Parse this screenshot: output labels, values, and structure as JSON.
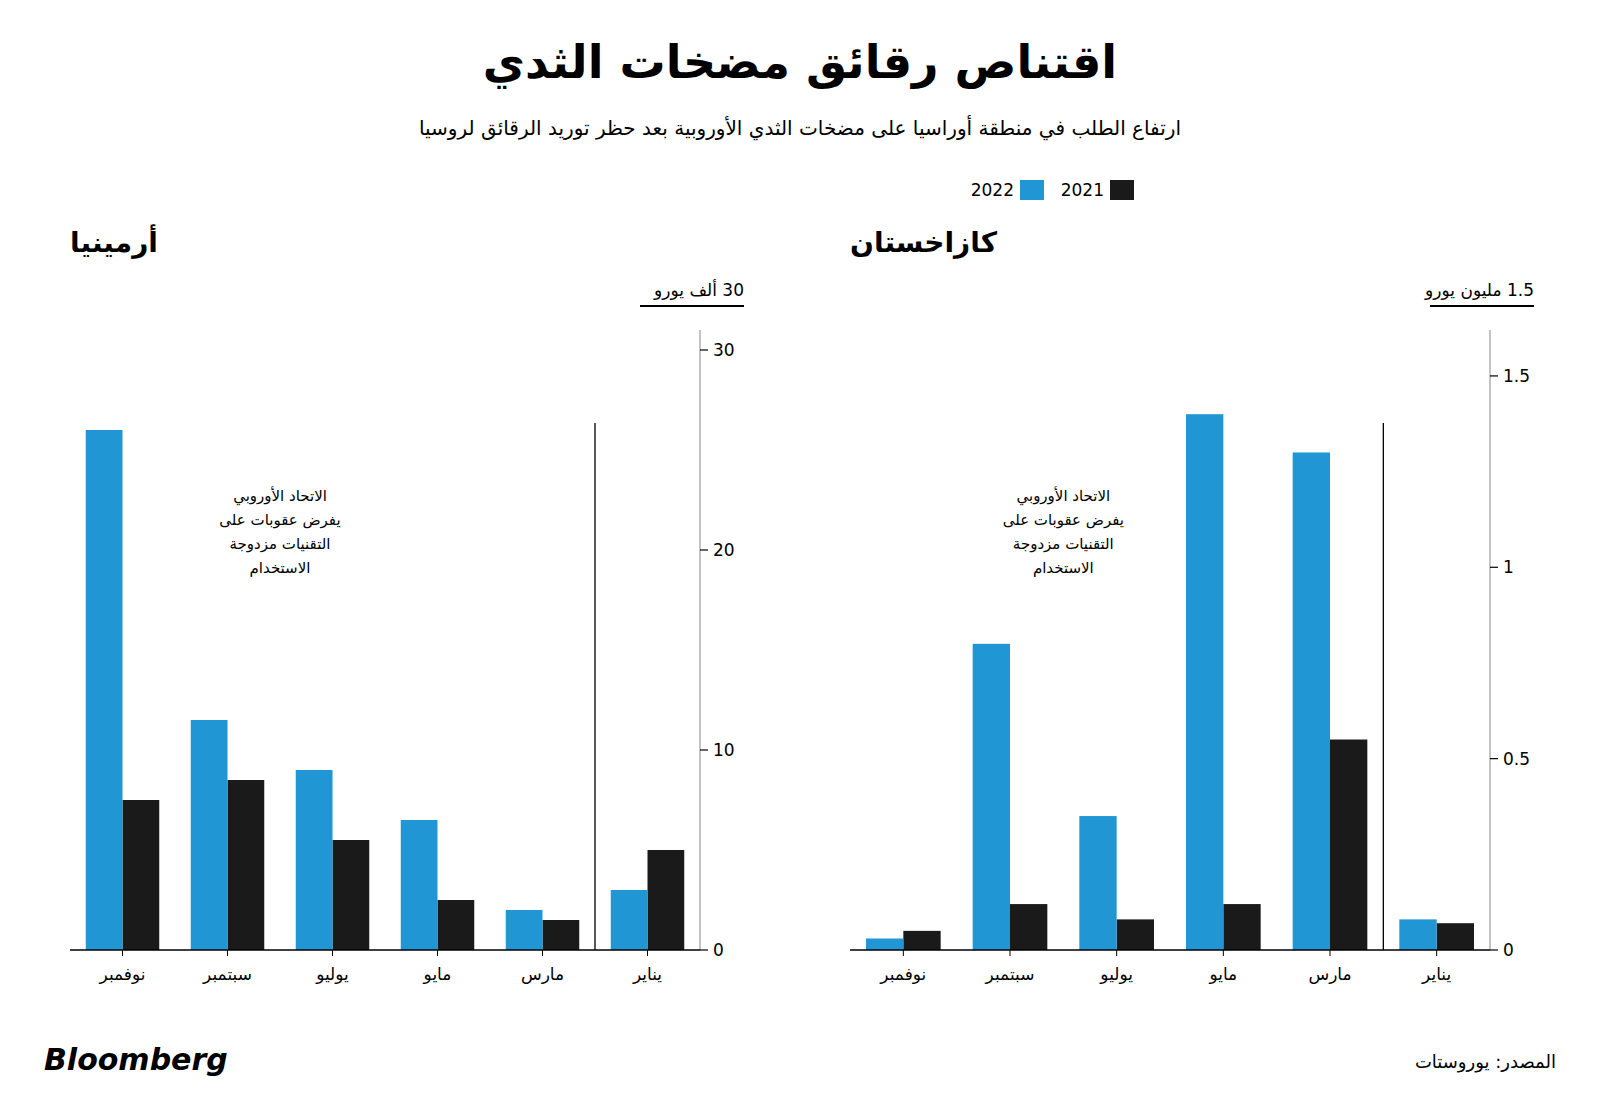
{
  "title": "اقتناص رقائق مضخات الثدي",
  "subtitle": "ارتفاع الطلب في منطقة أوراسيا على مضخات الثدي الأوروبية بعد حظر توريد الرقائق لروسيا",
  "annotations": [
    "المصدر: يوروستات",
    "Bloomberg"
  ],
  "chart_data": [
    {
      "type": "bar",
      "title": "أرمينيا",
      "ylabel": "30 ألف يورو",
      "categories": [
        "يناير",
        "مارس",
        "مايو",
        "يوليو",
        "سبتمبر",
        "نوفمبر"
      ],
      "series": [
        {
          "name": "2021",
          "color": "#1a1a1a",
          "values": [
            5.0,
            1.5,
            2.5,
            5.5,
            8.5,
            7.5
          ]
        },
        {
          "name": "2022",
          "color": "#2196d4",
          "values": [
            3.0,
            2.0,
            6.5,
            9.0,
            11.5,
            26.0
          ]
        }
      ],
      "ylim": [
        0,
        31
      ],
      "yticks": [
        0,
        10,
        20,
        30
      ],
      "grid": false,
      "legend": "top-right",
      "annotations": [
        "الاتحاد الأوروبي\nيفرض عقوبات على\nالتقنيات مزدوجة\nالاستخدام"
      ]
    },
    {
      "type": "bar",
      "title": "كازاخستان",
      "ylabel": "1.5 مليون يورو",
      "categories": [
        "يناير",
        "مارس",
        "مايو",
        "يوليو",
        "سبتمبر",
        "نوفمبر"
      ],
      "series": [
        {
          "name": "2021",
          "color": "#1a1a1a",
          "values": [
            0.07,
            0.55,
            0.12,
            0.08,
            0.12,
            0.05
          ]
        },
        {
          "name": "2022",
          "color": "#2196d4",
          "values": [
            0.08,
            1.3,
            1.4,
            0.35,
            0.8,
            0.03
          ]
        }
      ],
      "ylim": [
        0,
        1.62
      ],
      "yticks": [
        0,
        0.5,
        1,
        1.5
      ],
      "grid": false,
      "annotations": [
        "الاتحاد الأوروبي\nيفرض عقوبات على\nالتقنيات مزدوجة\nالاستخدام"
      ]
    }
  ]
}
